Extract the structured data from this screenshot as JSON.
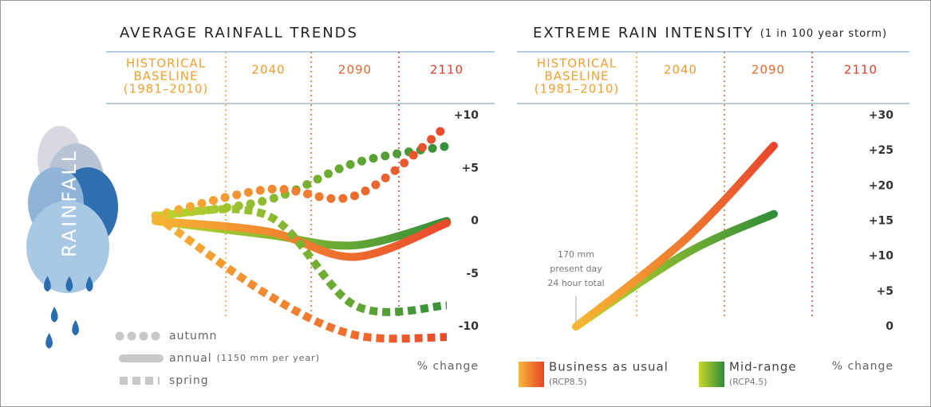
{
  "side_label": "RAINFALL",
  "chart_data": [
    {
      "type": "line",
      "title": "AVERAGE RAINFALL TRENDS",
      "categories": [
        [
          "HISTORICAL",
          "BASELINE",
          "(1981–2010)"
        ],
        "2040",
        "2090",
        "2110"
      ],
      "category_colors": [
        "#f0a030",
        "#f09a2c",
        "#e8662c",
        "#d8402c"
      ],
      "ylim": [
        -10,
        10
      ],
      "yticks": [
        {
          "value": 10,
          "label": "+10"
        },
        {
          "value": 5,
          "label": "+5"
        },
        0,
        -5,
        -10
      ],
      "y_label": "% change",
      "series": [
        {
          "name": "autumn",
          "style": "dots",
          "lines": [
            [
              0.5,
              3,
              2.4,
              9
            ],
            [
              0.5,
              2,
              5.5,
              7.1
            ]
          ]
        },
        {
          "name": "annual",
          "note": "(1150 mm per year)",
          "style": "solid",
          "lines": [
            [
              0,
              -1,
              -3.4,
              -0.2
            ],
            [
              0,
              -1.3,
              -2.3,
              0
            ]
          ]
        },
        {
          "name": "spring",
          "style": "squares",
          "lines": [
            [
              0.5,
              -7,
              -10.8,
              -11
            ],
            [
              0.5,
              0.5,
              -8,
              -8
            ]
          ]
        }
      ]
    },
    {
      "type": "line",
      "title": "EXTREME RAIN INTENSITY",
      "subtitle": "(1 in 100 year storm)",
      "categories": [
        [
          "HISTORICAL",
          "BASELINE",
          "(1981–2010)"
        ],
        "2040",
        "2090",
        "2110"
      ],
      "category_colors": [
        "#f0a030",
        "#f09a2c",
        "#e8662c",
        "#d8402c"
      ],
      "ylim": [
        0,
        30
      ],
      "yticks": [
        {
          "value": 30,
          "label": "+30"
        },
        {
          "value": 25,
          "label": "+25"
        },
        {
          "value": 20,
          "label": "+20"
        },
        {
          "value": 15,
          "label": "+15"
        },
        {
          "value": 10,
          "label": "+10"
        },
        {
          "value": 5,
          "label": "+5"
        },
        0
      ],
      "y_label": "% change",
      "annotation": [
        "170 mm",
        "present day",
        "24 hour total"
      ],
      "series": [
        {
          "name": "Business as usual",
          "note": "(RCP8.5)",
          "color_start": "#f7b733",
          "color": "#e8442c",
          "values": [
            0,
            12.5,
            25.7,
            null
          ]
        },
        {
          "name": "Mid-range",
          "note": "(RCP4.5)",
          "color_start": "#c8d82a",
          "color": "#2e8b3a",
          "values": [
            0,
            10.4,
            16,
            null
          ]
        }
      ]
    }
  ]
}
